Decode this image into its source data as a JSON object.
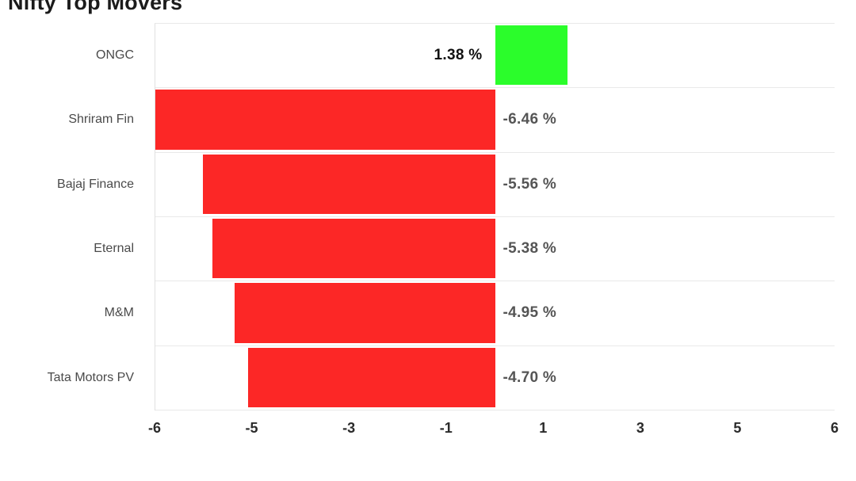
{
  "title": "Nifty Top Movers",
  "chart_data": {
    "type": "bar",
    "orientation": "horizontal",
    "title": "Nifty Top Movers",
    "categories": [
      "ONGC",
      "Shriram Fin",
      "Bajaj Finance",
      "Eternal",
      "M&M",
      "Tata Motors PV"
    ],
    "values": [
      1.38,
      -6.46,
      -5.56,
      -5.38,
      -4.95,
      -4.7
    ],
    "value_labels": [
      "1.38 %",
      "-6.46 %",
      "-5.56 %",
      "-5.38 %",
      "-4.95 %",
      "-4.70 %"
    ],
    "xlim": [
      -6.46,
      6.46
    ],
    "x_tick_labels": [
      "-6",
      "-5",
      "-3",
      "-1",
      "1",
      "3",
      "5",
      "6"
    ],
    "grid": "horizontal row separators only",
    "legend": "none",
    "colors": {
      "positive_bar": "#2bfd2b",
      "negative_bar": "#fc2726",
      "positive_value_label": "#111111",
      "negative_value_label": "#555555",
      "category_label": "#4a4a4a",
      "tick_label": "#2b2b2b",
      "gridline": "#e9e9e9",
      "title": "#1b1b1b"
    }
  }
}
